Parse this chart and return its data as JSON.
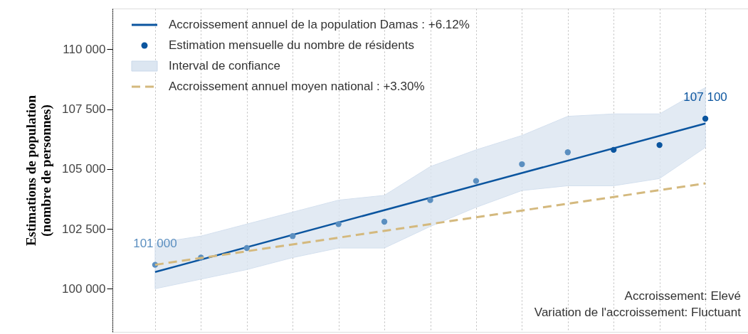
{
  "chart_data": {
    "type": "line",
    "ylabel": "Estimations de population\n(nombre de personnes)",
    "categories": [
      null,
      null,
      null,
      null,
      null,
      null,
      null,
      null,
      null,
      null,
      null,
      null,
      null
    ],
    "ylim": [
      98200,
      111700
    ],
    "yticks": [
      {
        "value": 100000,
        "label": "100 000"
      },
      {
        "value": 102500,
        "label": "102 500"
      },
      {
        "value": 105000,
        "label": "105 000"
      },
      {
        "value": 107500,
        "label": "107 500"
      },
      {
        "value": 110000,
        "label": "110 000"
      }
    ],
    "grid": "x",
    "legend": "top left",
    "tick_labels": "y",
    "series": [
      {
        "name": "Accroissement annuel de la population Damas : +6.12%",
        "type": "line",
        "color": "#0b559f",
        "line_style": "solid",
        "values": [
          100700,
          null,
          null,
          null,
          null,
          null,
          null,
          null,
          null,
          null,
          null,
          null,
          106900
        ]
      },
      {
        "name": "Estimation mensuelle du nombre de résidents",
        "type": "scatter",
        "marker": "circle",
        "colors": [
          "#5b8fc0",
          "#5b8fc0",
          "#5b8fc0",
          "#5b8fc0",
          "#5b8fc0",
          "#5b8fc0",
          "#5b8fc0",
          "#5b8fc0",
          "#5b8fc0",
          "#5b8fc0",
          "#0b559f",
          "#0b559f",
          "#0b559f"
        ],
        "color": "#0b559f",
        "values": [
          101000,
          101300,
          101700,
          102200,
          102700,
          102800,
          103700,
          104500,
          105200,
          105700,
          105800,
          106000,
          107100
        ],
        "value_labels": [
          "101 000",
          null,
          null,
          null,
          null,
          null,
          null,
          null,
          null,
          null,
          null,
          null,
          "107 100"
        ]
      },
      {
        "name": "Interval de confiance",
        "type": "area",
        "color": "#dce6f1",
        "values": [
          null,
          null,
          null,
          null,
          null,
          null,
          null,
          null,
          null,
          null,
          null,
          null,
          null
        ],
        "lower": [
          100000,
          100400,
          100800,
          101300,
          101700,
          101700,
          102600,
          103400,
          104100,
          104300,
          104300,
          104600,
          105900
        ],
        "upper": [
          101900,
          102200,
          102700,
          103200,
          103700,
          103900,
          105100,
          105800,
          106400,
          107200,
          107300,
          107300,
          108400
        ]
      },
      {
        "name": "Accroissement annuel moyen national : +3.30%",
        "type": "line",
        "color": "#d4b97e",
        "line_style": "dashed",
        "values": [
          101000,
          null,
          null,
          null,
          null,
          null,
          null,
          null,
          null,
          null,
          null,
          null,
          104400
        ]
      }
    ],
    "annotations": [
      "Accroissement: Elevé",
      "Variation de l'accroissement: Fluctuant"
    ]
  }
}
